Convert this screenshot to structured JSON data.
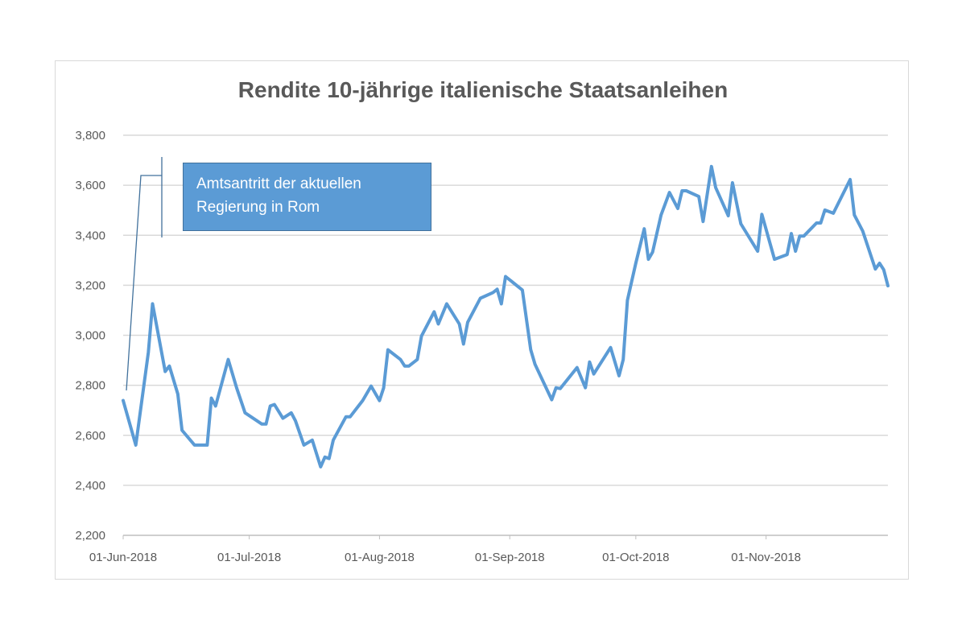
{
  "chart_data": {
    "type": "line",
    "title": "Rendite 10-jährige italienische Staatsanleihen",
    "xlabel": "",
    "ylabel": "",
    "x_unit": "days since 01-Jun-2018",
    "ylim": [
      2200,
      3800
    ],
    "yticks": [
      2200,
      2400,
      2600,
      2800,
      3000,
      3200,
      3400,
      3600,
      3800
    ],
    "ytick_labels": [
      "2,200",
      "2,400",
      "2,600",
      "2,800",
      "3,000",
      "3,200",
      "3,400",
      "3,600",
      "3,800"
    ],
    "xlim": [
      0,
      182
    ],
    "xticks": [
      0,
      30,
      61,
      92,
      122,
      153
    ],
    "xtick_labels": [
      "01-Jun-2018",
      "01-Jul-2018",
      "01-Aug-2018",
      "01-Sep-2018",
      "01-Oct-2018",
      "01-Nov-2018"
    ],
    "grid": true,
    "series": [
      {
        "name": "Rendite",
        "color": "#5b9bd5",
        "points": [
          [
            0,
            2739
          ],
          [
            3,
            2561
          ],
          [
            6,
            2932
          ],
          [
            7,
            3126
          ],
          [
            10,
            2855
          ],
          [
            11,
            2877
          ],
          [
            13,
            2765
          ],
          [
            14,
            2620
          ],
          [
            17,
            2561
          ],
          [
            20,
            2561
          ],
          [
            21,
            2749
          ],
          [
            22,
            2717
          ],
          [
            25,
            2903
          ],
          [
            27,
            2790
          ],
          [
            29,
            2690
          ],
          [
            33,
            2645
          ],
          [
            34,
            2645
          ],
          [
            35,
            2717
          ],
          [
            36,
            2723
          ],
          [
            38,
            2668
          ],
          [
            40,
            2690
          ],
          [
            41,
            2658
          ],
          [
            43,
            2561
          ],
          [
            45,
            2581
          ],
          [
            47,
            2474
          ],
          [
            48,
            2513
          ],
          [
            49,
            2507
          ],
          [
            50,
            2581
          ],
          [
            53,
            2674
          ],
          [
            54,
            2674
          ],
          [
            57,
            2739
          ],
          [
            59,
            2797
          ],
          [
            61,
            2739
          ],
          [
            62,
            2790
          ],
          [
            63,
            2942
          ],
          [
            66,
            2903
          ],
          [
            67,
            2877
          ],
          [
            68,
            2877
          ],
          [
            70,
            2903
          ],
          [
            71,
            2997
          ],
          [
            74,
            3094
          ],
          [
            75,
            3045
          ],
          [
            77,
            3126
          ],
          [
            80,
            3045
          ],
          [
            81,
            2965
          ],
          [
            82,
            3052
          ],
          [
            85,
            3148
          ],
          [
            88,
            3171
          ],
          [
            89,
            3184
          ],
          [
            90,
            3126
          ],
          [
            91,
            3235
          ],
          [
            95,
            3181
          ],
          [
            97,
            2942
          ],
          [
            98,
            2884
          ],
          [
            102,
            2742
          ],
          [
            103,
            2790
          ],
          [
            104,
            2787
          ],
          [
            108,
            2871
          ],
          [
            110,
            2790
          ],
          [
            111,
            2893
          ],
          [
            112,
            2845
          ],
          [
            116,
            2951
          ],
          [
            118,
            2838
          ],
          [
            119,
            2903
          ],
          [
            120,
            3140
          ],
          [
            122,
            3288
          ],
          [
            124,
            3426
          ],
          [
            125,
            3304
          ],
          [
            126,
            3333
          ],
          [
            128,
            3481
          ],
          [
            130,
            3571
          ],
          [
            132,
            3507
          ],
          [
            133,
            3578
          ],
          [
            134,
            3578
          ],
          [
            137,
            3555
          ],
          [
            138,
            3455
          ],
          [
            140,
            3675
          ],
          [
            141,
            3591
          ],
          [
            144,
            3478
          ],
          [
            145,
            3610
          ],
          [
            147,
            3446
          ],
          [
            151,
            3336
          ],
          [
            152,
            3484
          ],
          [
            155,
            3304
          ],
          [
            158,
            3323
          ],
          [
            159,
            3407
          ],
          [
            160,
            3336
          ],
          [
            161,
            3397
          ],
          [
            162,
            3397
          ],
          [
            165,
            3449
          ],
          [
            166,
            3449
          ],
          [
            167,
            3501
          ],
          [
            169,
            3488
          ],
          [
            173,
            3623
          ],
          [
            174,
            3481
          ],
          [
            176,
            3417
          ],
          [
            179,
            3265
          ],
          [
            180,
            3288
          ],
          [
            181,
            3262
          ],
          [
            182,
            3198
          ]
        ]
      }
    ],
    "annotations": [
      {
        "text_line1": "Amtsantritt der aktuellen",
        "text_line2": "Regierung in Rom",
        "fill": "#5b9bd5"
      }
    ]
  }
}
